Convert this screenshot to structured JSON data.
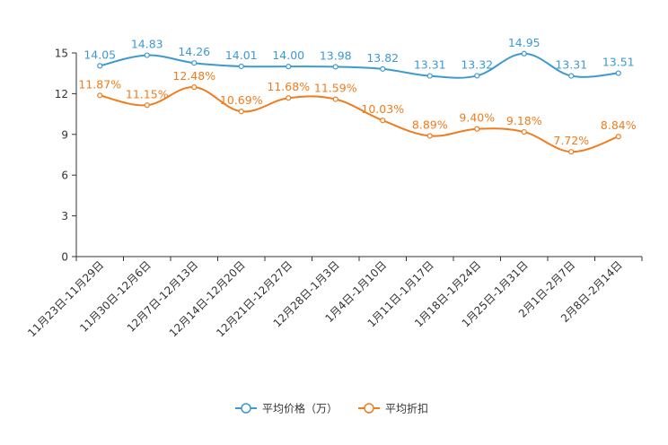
{
  "chart_data": {
    "type": "line",
    "title": "",
    "xlabel": "",
    "ylabel": "",
    "ylim": [
      0,
      15
    ],
    "yticks": [
      0,
      3,
      6,
      9,
      12,
      15
    ],
    "grid": false,
    "legend_position": "bottom-center",
    "categories": [
      "11月23日-11月29日",
      "11月30日-12月6日",
      "12月7日-12月13日",
      "12月14日-12月20日",
      "12月21日-12月27日",
      "12月28日-1月3日",
      "1月4日-1月10日",
      "1月11日-1月17日",
      "1月18日-1月24日",
      "1月25日-1月31日",
      "2月1日-2月7日",
      "2月8日-2月14日"
    ],
    "series": [
      {
        "name": "平均价格（万）",
        "color": "#3d9ad1",
        "values": [
          14.05,
          14.83,
          14.26,
          14.01,
          14.0,
          13.98,
          13.82,
          13.31,
          13.32,
          14.95,
          13.31,
          13.51
        ],
        "labels": [
          "14.05",
          "14.83",
          "14.26",
          "14.01",
          "14.00",
          "13.98",
          "13.82",
          "13.31",
          "13.32",
          "14.95",
          "13.31",
          "13.51"
        ]
      },
      {
        "name": "平均折扣",
        "color": "#f07c1d",
        "values": [
          11.87,
          11.15,
          12.48,
          10.69,
          11.68,
          11.59,
          10.03,
          8.89,
          9.4,
          9.18,
          7.72,
          8.84
        ],
        "labels": [
          "11.87%",
          "11.15%",
          "12.48%",
          "10.69%",
          "11.68%",
          "11.59%",
          "10.03%",
          "8.89%",
          "9.40%",
          "9.18%",
          "7.72%",
          "8.84%"
        ]
      }
    ]
  }
}
